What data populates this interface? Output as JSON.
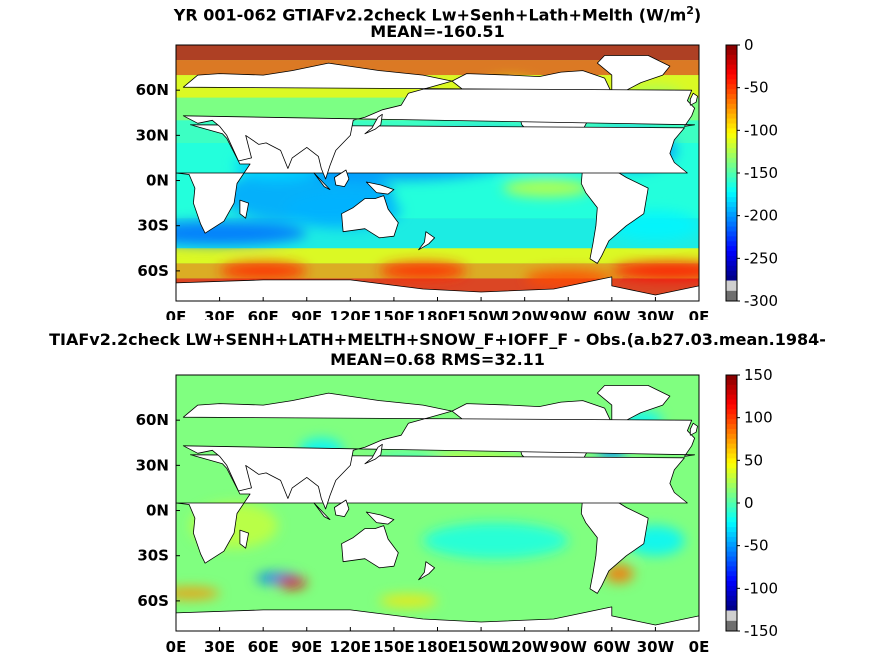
{
  "panels": [
    {
      "title_line1": "YR 001-062 GTIAFv2.2check Lw+Senh+Lath+Melth (W/m",
      "title_sup": "2",
      "title_close": ")",
      "title_line2": "MEAN=-160.51",
      "colorbar_ticks": [
        "0",
        "-50",
        "-100",
        "-150",
        "-200",
        "-250",
        "-300"
      ],
      "colorbar_range": [
        -300,
        0
      ]
    },
    {
      "title_line1": "TIAFv2.2check LW+SENH+LATH+MELTH+SNOW_F+IOFF_F - Obs.(a.b27.03.mean.1984-",
      "title_sup": "",
      "title_close": "",
      "title_line2": "MEAN=0.68 RMS=32.11",
      "colorbar_ticks": [
        "150",
        "100",
        "50",
        "0",
        "-50",
        "-100",
        "-150"
      ],
      "colorbar_range": [
        -150,
        150
      ]
    }
  ],
  "x_ticks": [
    "0E",
    "30E",
    "60E",
    "90E",
    "120E",
    "150E",
    "180E",
    "150W",
    "120W",
    "90W",
    "60W",
    "30W",
    "0E"
  ],
  "y_ticks": [
    "60N",
    "30N",
    "0N",
    "30S",
    "60S"
  ],
  "chart_data": [
    {
      "type": "heatmap",
      "title": "YR 001-062 GTIAFv2.2check Lw+Senh+Lath+Melth (W/m2)",
      "subtitle": "MEAN=-160.51",
      "x_range_deg_east": [
        0,
        360
      ],
      "y_range_deg_lat": [
        -80,
        90
      ],
      "colorbar": {
        "min": -300,
        "max": 0,
        "ticks": [
          0,
          -50,
          -100,
          -150,
          -200,
          -250,
          -300
        ],
        "units": "W/m2"
      },
      "mean": -160.51
    },
    {
      "type": "heatmap",
      "title": "TIAFv2.2check LW+SENH+LATH+MELTH+SNOW_F+IOFF_F - Obs.(a.b27.03.mean.1984-",
      "subtitle": "MEAN=0.68 RMS=32.11",
      "x_range_deg_east": [
        0,
        360
      ],
      "y_range_deg_lat": [
        -80,
        90
      ],
      "colorbar": {
        "min": -150,
        "max": 150,
        "ticks": [
          150,
          100,
          50,
          0,
          -50,
          -100,
          -150
        ]
      },
      "mean": 0.68,
      "rms": 32.11
    }
  ]
}
